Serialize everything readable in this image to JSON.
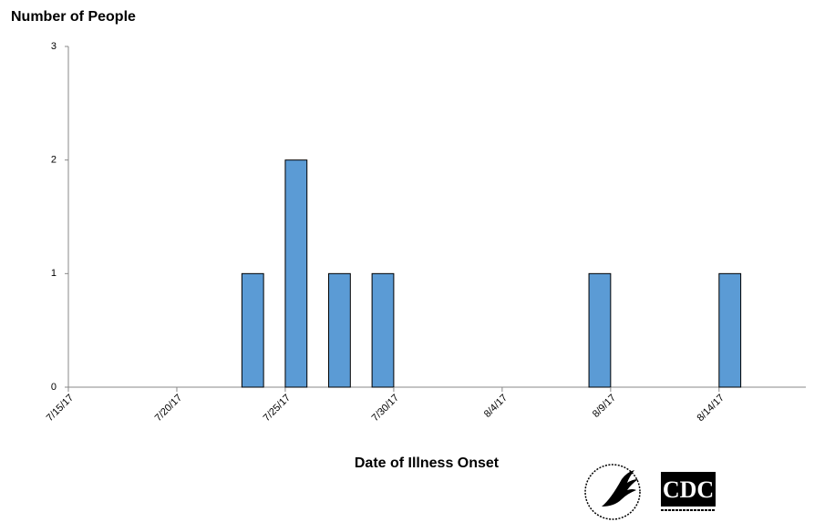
{
  "chart_data": {
    "type": "bar",
    "y_label": "Number of People",
    "x_label": "Date of Illness Onset",
    "categories": [
      "7/15/17",
      null,
      null,
      null,
      null,
      "7/20/17",
      null,
      null,
      null,
      null,
      "7/25/17",
      null,
      null,
      null,
      null,
      "7/30/17",
      null,
      null,
      null,
      null,
      "8/4/17",
      null,
      null,
      null,
      null,
      "8/9/17",
      null,
      null,
      null,
      null,
      "8/14/17",
      null,
      null,
      null
    ],
    "values": [
      0,
      0,
      0,
      0,
      0,
      0,
      0,
      0,
      1,
      0,
      2,
      0,
      1,
      0,
      1,
      0,
      0,
      0,
      0,
      0,
      0,
      0,
      0,
      0,
      1,
      0,
      0,
      0,
      0,
      0,
      1,
      0,
      0,
      0
    ],
    "color": "#5b9bd5",
    "ylim": [
      0,
      3
    ],
    "yticks": [
      0,
      1,
      2,
      3
    ],
    "grid": false
  },
  "logo_text": "CDC"
}
